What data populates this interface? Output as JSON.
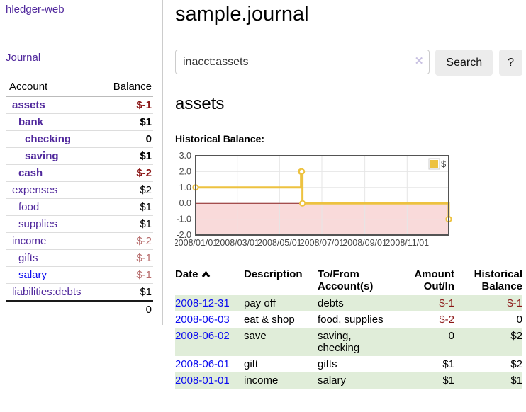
{
  "app": {
    "brand": "hledger-web"
  },
  "nav": {
    "journal": "Journal"
  },
  "sidebar": {
    "accounts_table": {
      "col_account": "Account",
      "col_balance": "Balance",
      "rows": [
        {
          "name": "assets",
          "depth": 0,
          "bold": true,
          "balance": "$-1",
          "balance_style": "neg-strong"
        },
        {
          "name": "bank",
          "depth": 1,
          "bold": true,
          "balance": "$1",
          "balance_style": "pos"
        },
        {
          "name": "checking",
          "depth": 2,
          "bold": true,
          "balance": "0",
          "balance_style": "pos"
        },
        {
          "name": "saving",
          "depth": 2,
          "bold": true,
          "balance": "$1",
          "balance_style": "pos"
        },
        {
          "name": "cash",
          "depth": 1,
          "bold": true,
          "balance": "$-2",
          "balance_style": "neg-strong"
        },
        {
          "name": "expenses",
          "depth": 0,
          "bold": false,
          "balance": "$2",
          "balance_style": "pos"
        },
        {
          "name": "food",
          "depth": 1,
          "bold": false,
          "balance": "$1",
          "balance_style": "pos"
        },
        {
          "name": "supplies",
          "depth": 1,
          "bold": false,
          "balance": "$1",
          "balance_style": "pos"
        },
        {
          "name": "income",
          "depth": 0,
          "bold": false,
          "balance": "$-2",
          "balance_style": "neg-soft"
        },
        {
          "name": "gifts",
          "depth": 1,
          "bold": false,
          "balance": "$-1",
          "balance_style": "neg-soft"
        },
        {
          "name": "salary",
          "depth": 1,
          "bold": false,
          "balance": "$-1",
          "balance_style": "neg-soft",
          "link_color": "blue"
        },
        {
          "name": "liabilities:debts",
          "depth": 0,
          "bold": false,
          "balance": "$1",
          "balance_style": "pos"
        }
      ],
      "total": "0"
    }
  },
  "header": {
    "title": "sample.journal"
  },
  "search": {
    "value": "inacct:assets",
    "clear_icon": "✕",
    "button": "Search",
    "help_button": "?"
  },
  "account_page": {
    "heading": "assets"
  },
  "chart_data": {
    "type": "line",
    "step": true,
    "title": "Historical Balance:",
    "xlim": [
      "2008-01-01",
      "2008-12-31"
    ],
    "ylim": [
      -2,
      3
    ],
    "grid": true,
    "y_ticks": [
      3,
      2,
      1,
      0,
      -1,
      -2
    ],
    "x_ticks": [
      {
        "date": "2008-01-01",
        "label": "2008/01/01"
      },
      {
        "date": "2008-03-01",
        "label": "2008/03/01"
      },
      {
        "date": "2008-05-01",
        "label": "2008/05/01"
      },
      {
        "date": "2008-07-01",
        "label": "2008/07/01"
      },
      {
        "date": "2008-09-01",
        "label": "2008/09/01"
      },
      {
        "date": "2008-11-01",
        "label": "2008/11/01"
      }
    ],
    "series": [
      {
        "name": "$",
        "color": "#edc240",
        "points": [
          [
            "2008-01-01",
            1
          ],
          [
            "2008-06-01",
            2
          ],
          [
            "2008-06-02",
            2
          ],
          [
            "2008-06-03",
            0
          ],
          [
            "2008-12-31",
            -1
          ]
        ]
      }
    ],
    "legend": {
      "label": "$",
      "position": "top-right"
    },
    "colors": {
      "negative_fill": "#f9dada",
      "zero_line": "#8b1c1c",
      "border": "#545454",
      "gridline": "#e6e6e6",
      "marker_fill": "#ffffff"
    }
  },
  "register": {
    "columns": [
      "Date",
      "Description",
      "To/From Account(s)",
      "Amount Out/In",
      "Historical Balance"
    ],
    "rows": [
      {
        "date": "2008-12-31",
        "description": "pay off",
        "accounts": "debts",
        "amount": "$-1",
        "amount_neg": true,
        "balance": "$-1",
        "balance_neg": true,
        "shaded": true
      },
      {
        "date": "2008-06-03",
        "description": "eat & shop",
        "accounts": "food, supplies",
        "amount": "$-2",
        "amount_neg": true,
        "balance": "0",
        "balance_neg": false,
        "shaded": false
      },
      {
        "date": "2008-06-02",
        "description": "save",
        "accounts": "saving, checking",
        "amount": "0",
        "amount_neg": false,
        "balance": "$2",
        "balance_neg": false,
        "shaded": true
      },
      {
        "date": "2008-06-01",
        "description": "gift",
        "accounts": "gifts",
        "amount": "$1",
        "amount_neg": false,
        "balance": "$2",
        "balance_neg": false,
        "shaded": false
      },
      {
        "date": "2008-01-01",
        "description": "income",
        "accounts": "salary",
        "amount": "$1",
        "amount_neg": false,
        "balance": "$1",
        "balance_neg": false,
        "shaded": true
      }
    ]
  }
}
